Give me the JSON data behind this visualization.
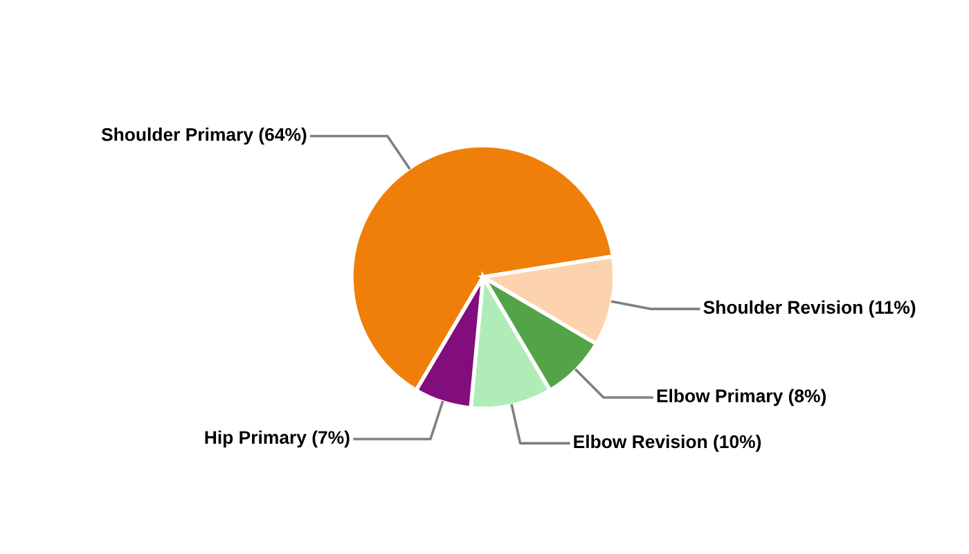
{
  "chart_data": {
    "type": "pie",
    "categories": [
      "Shoulder Primary (64%)",
      "Shoulder Revision (11%)",
      "Elbow Primary (8%)",
      "Elbow Revision (10%)",
      "Hip Primary (7%)"
    ],
    "values": [
      64,
      11,
      8,
      10,
      7
    ],
    "colors": [
      "#f07f09",
      "#fdd3ad",
      "#52a447",
      "#b0ecb8",
      "#820d7d"
    ]
  }
}
